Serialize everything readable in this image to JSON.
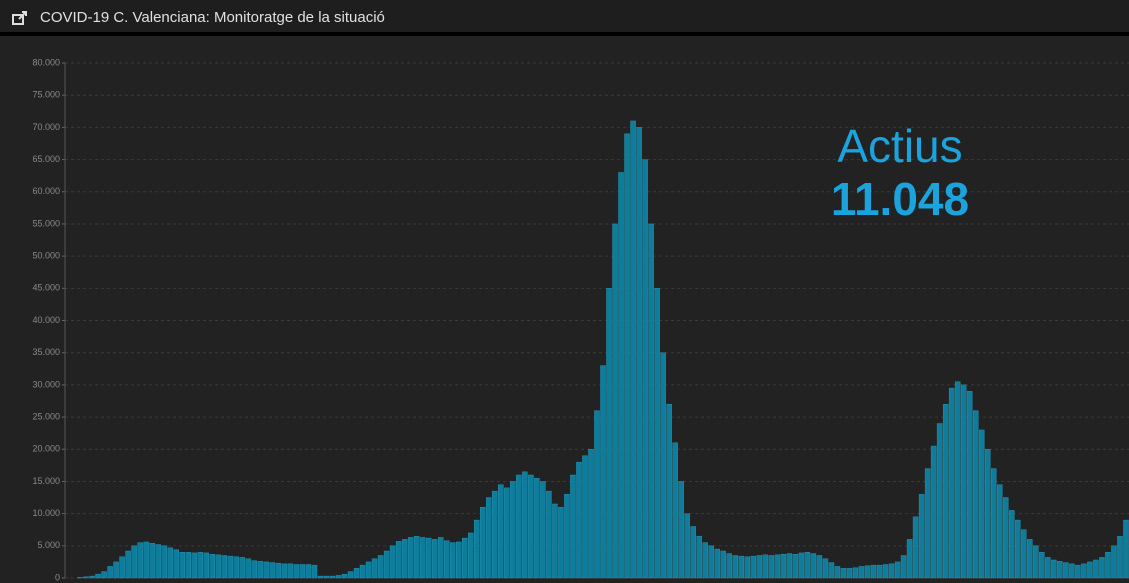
{
  "header": {
    "title": "COVID-19 C. Valenciana: Monitoratge de la situació"
  },
  "indicator": {
    "label": "Actius",
    "value": "11.048"
  },
  "chart_data": {
    "type": "bar",
    "color": "#0e7d9c",
    "grid": true,
    "ylim": [
      0,
      80000
    ],
    "yticks": [
      0,
      {
        "value": 5000,
        "label": "5.000"
      },
      {
        "value": 10000,
        "label": "10.000"
      },
      {
        "value": 15000,
        "label": "15.000"
      },
      {
        "value": 20000,
        "label": "20.000"
      },
      {
        "value": 25000,
        "label": "25.000"
      },
      {
        "value": 30000,
        "label": "30.000"
      },
      {
        "value": 35000,
        "label": "35.000"
      },
      {
        "value": 40000,
        "label": "40.000"
      },
      {
        "value": 45000,
        "label": "45.000"
      },
      {
        "value": 50000,
        "label": "50.000"
      },
      {
        "value": 55000,
        "label": "55.000"
      },
      {
        "value": 60000,
        "label": "60.000"
      },
      {
        "value": 65000,
        "label": "65.000"
      },
      {
        "value": 70000,
        "label": "70.000"
      },
      {
        "value": 75000,
        "label": "75.000"
      },
      {
        "value": 80000,
        "label": "80.000"
      }
    ],
    "categories": [
      null,
      null,
      null,
      null,
      null,
      null,
      null,
      null,
      null,
      null,
      null,
      null,
      null,
      null,
      null,
      null,
      null,
      null,
      null,
      null,
      null,
      null,
      null,
      null,
      null,
      null,
      null,
      null,
      null,
      null,
      null,
      null,
      null,
      null,
      null,
      null,
      null,
      null,
      null,
      null,
      null,
      null,
      null,
      null,
      null,
      null,
      null,
      null,
      null,
      null,
      null,
      null,
      null,
      null,
      null,
      null,
      null,
      null,
      null,
      null,
      null,
      null,
      null,
      null,
      null,
      null,
      null,
      null,
      null,
      null,
      null,
      null,
      null,
      null,
      null,
      null,
      null,
      null,
      null,
      null,
      null,
      null,
      null,
      null,
      null,
      null,
      null,
      null,
      null,
      null,
      null,
      null,
      null,
      null,
      null,
      null,
      null,
      null,
      null,
      null,
      null,
      null,
      null,
      null,
      null,
      null,
      null,
      null,
      null,
      null,
      null,
      null,
      null,
      null,
      null,
      null,
      null,
      null,
      null,
      null,
      null,
      null,
      null,
      null,
      null,
      null,
      null,
      null,
      null,
      null,
      null,
      null,
      null,
      null,
      null,
      null,
      null,
      null,
      null,
      null,
      null,
      null,
      null,
      null,
      null,
      null,
      null,
      null,
      null,
      null,
      null,
      null,
      null,
      null,
      null,
      null,
      null,
      null,
      null,
      null,
      null,
      null,
      null,
      null,
      null,
      null,
      null,
      null,
      null,
      null,
      null,
      null,
      null,
      null,
      null,
      null,
      null
    ],
    "values": [
      0,
      0,
      100,
      200,
      300,
      600,
      1000,
      1800,
      2500,
      3300,
      4200,
      5000,
      5500,
      5600,
      5400,
      5200,
      5000,
      4700,
      4400,
      4000,
      4000,
      3900,
      4000,
      3900,
      3700,
      3600,
      3500,
      3400,
      3300,
      3200,
      3000,
      2700,
      2600,
      2500,
      2400,
      2300,
      2200,
      2200,
      2100,
      2100,
      2100,
      2000,
      300,
      300,
      300,
      400,
      600,
      1000,
      1500,
      2000,
      2500,
      3000,
      3500,
      4200,
      5000,
      5700,
      6000,
      6300,
      6500,
      6300,
      6200,
      6000,
      6300,
      5800,
      5500,
      5600,
      6200,
      7000,
      9000,
      11000,
      12500,
      13500,
      14500,
      14000,
      15000,
      16000,
      16500,
      16000,
      15500,
      15000,
      13500,
      11500,
      11000,
      13000,
      16000,
      18000,
      19000,
      20000,
      26000,
      33000,
      45000,
      55000,
      63000,
      69000,
      71000,
      70000,
      65000,
      55000,
      45000,
      35000,
      27000,
      21000,
      15000,
      10000,
      8000,
      6500,
      5500,
      5000,
      4500,
      4200,
      3800,
      3500,
      3400,
      3300,
      3400,
      3500,
      3600,
      3500,
      3600,
      3700,
      3800,
      3700,
      3900,
      4000,
      3800,
      3500,
      3000,
      2400,
      1800,
      1500,
      1500,
      1600,
      1800,
      1900,
      2000,
      2000,
      2100,
      2200,
      2500,
      3500,
      6000,
      9500,
      13000,
      17000,
      20500,
      24000,
      27000,
      29500,
      30500,
      30000,
      29000,
      26000,
      23000,
      20000,
      17000,
      14500,
      12500,
      10500,
      9000,
      7500,
      6000,
      5000,
      4000,
      3200,
      2800,
      2600,
      2400,
      2200,
      2000,
      2200,
      2500,
      2800,
      3200,
      4000,
      5000,
      6500,
      9000
    ]
  }
}
